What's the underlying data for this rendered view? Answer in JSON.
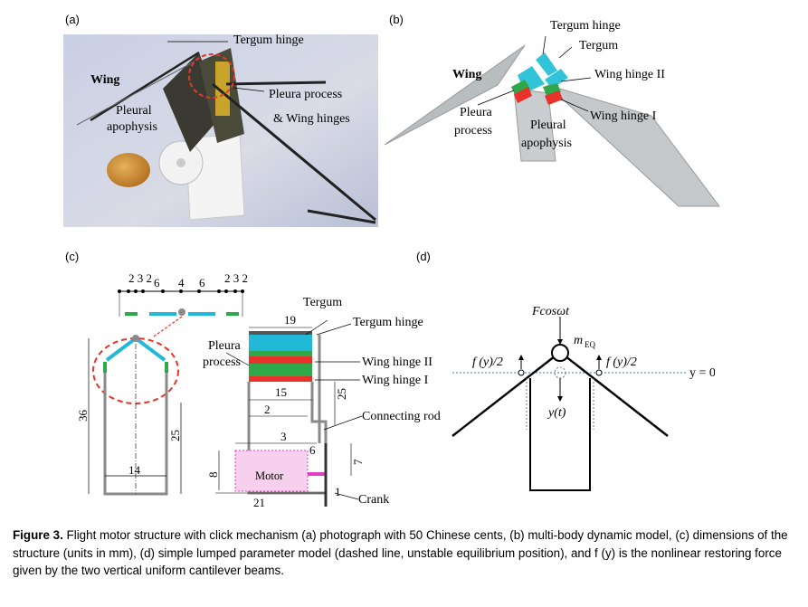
{
  "panels": {
    "a": {
      "label": "(a)",
      "annotations": {
        "tergum_hinge": "Tergum hinge",
        "wing": "Wing",
        "pleural_apophysis_1": "Pleural",
        "pleural_apophysis_2": "apophysis",
        "pleura_process_1": "Pleura process",
        "pleura_process_2": "& Wing hinges"
      }
    },
    "b": {
      "label": "(b)",
      "annotations": {
        "tergum_hinge": "Tergum hinge",
        "tergum": "Tergum",
        "wing": "Wing",
        "wing_hinge_2": "Wing hinge II",
        "wing_hinge_1": "Wing hinge I",
        "pleura_process_1": "Pleura",
        "pleura_process_2": "process",
        "pleural_apophysis_1": "Pleural",
        "pleural_apophysis_2": "apophysis"
      }
    },
    "c": {
      "label": "(c)",
      "top_dims_left": "2 3 2",
      "top_dims_right": "2 3 2",
      "top_dims_mid": [
        "6",
        "4",
        "6"
      ],
      "annotations": {
        "tergum": "Tergum",
        "tergum_hinge": "Tergum hinge",
        "pleura_process_1": "Pleura",
        "pleura_process_2": "process",
        "wing_hinge_2": "Wing hinge II",
        "wing_hinge_1": "Wing hinge I",
        "connecting_rod": "Connecting rod",
        "motor": "Motor",
        "crank": "Crank"
      },
      "dimensions": {
        "d19": "19",
        "d15": "15",
        "d25_right": "25",
        "d2": "2",
        "d3": "3",
        "d6": "6",
        "d7": "7",
        "d8": "8",
        "d21": "21",
        "d1": "1",
        "d36": "36",
        "d25_left": "25",
        "d14": "14"
      }
    },
    "d": {
      "label": "(d)",
      "force": "Fcosωt",
      "mass": "m",
      "mass_sub": "EQ",
      "restoring_left": "f (y)/2",
      "restoring_right": "f (y)/2",
      "equilibrium": "y = 0",
      "displacement": "y(t)"
    }
  },
  "caption": {
    "figure_label": "Figure 3.",
    "text": "Flight motor structure with click mechanism (a) photograph with 50 Chinese cents, (b) multi-body dynamic model, (c) dimensions of the structure (units in mm), (d) simple lumped parameter model (dashed line, unstable equilibrium position), and f (y) is the nonlinear restoring force given by the two vertical uniform cantilever beams."
  },
  "colors": {
    "cyan": "#22b8d8",
    "red": "#e8322a",
    "green": "#2fa84a",
    "magenta": "#e040c0",
    "gray": "#8a8a8a"
  }
}
